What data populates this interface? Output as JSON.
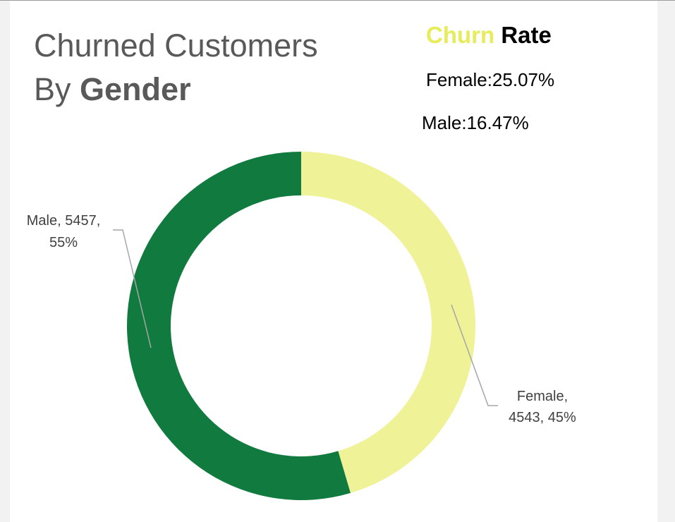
{
  "title": {
    "line1": "Churned Customers",
    "line2_prefix": "By",
    "line2_bold": "Gender"
  },
  "churn_rate": {
    "heading_churn": "Churn",
    "heading_rate": "Rate",
    "female_text": "Female:25.07%",
    "male_text": "Male:16.47%",
    "churn_color": "#E6EC5A"
  },
  "chart_data": {
    "type": "doughnut",
    "title": "Churned Customers By Gender",
    "series": [
      {
        "name": "Churned Customers",
        "categories": [
          "Female",
          "Male"
        ],
        "values": [
          4543,
          5457
        ],
        "percents": [
          45,
          55
        ],
        "colors": [
          "#EFF297",
          "#117A3F"
        ]
      }
    ],
    "data_labels": [
      {
        "line1": "Female,",
        "line2": "4543, 45%"
      },
      {
        "line1": "Male, 5457,",
        "line2": "55%"
      }
    ],
    "legend": "none"
  }
}
